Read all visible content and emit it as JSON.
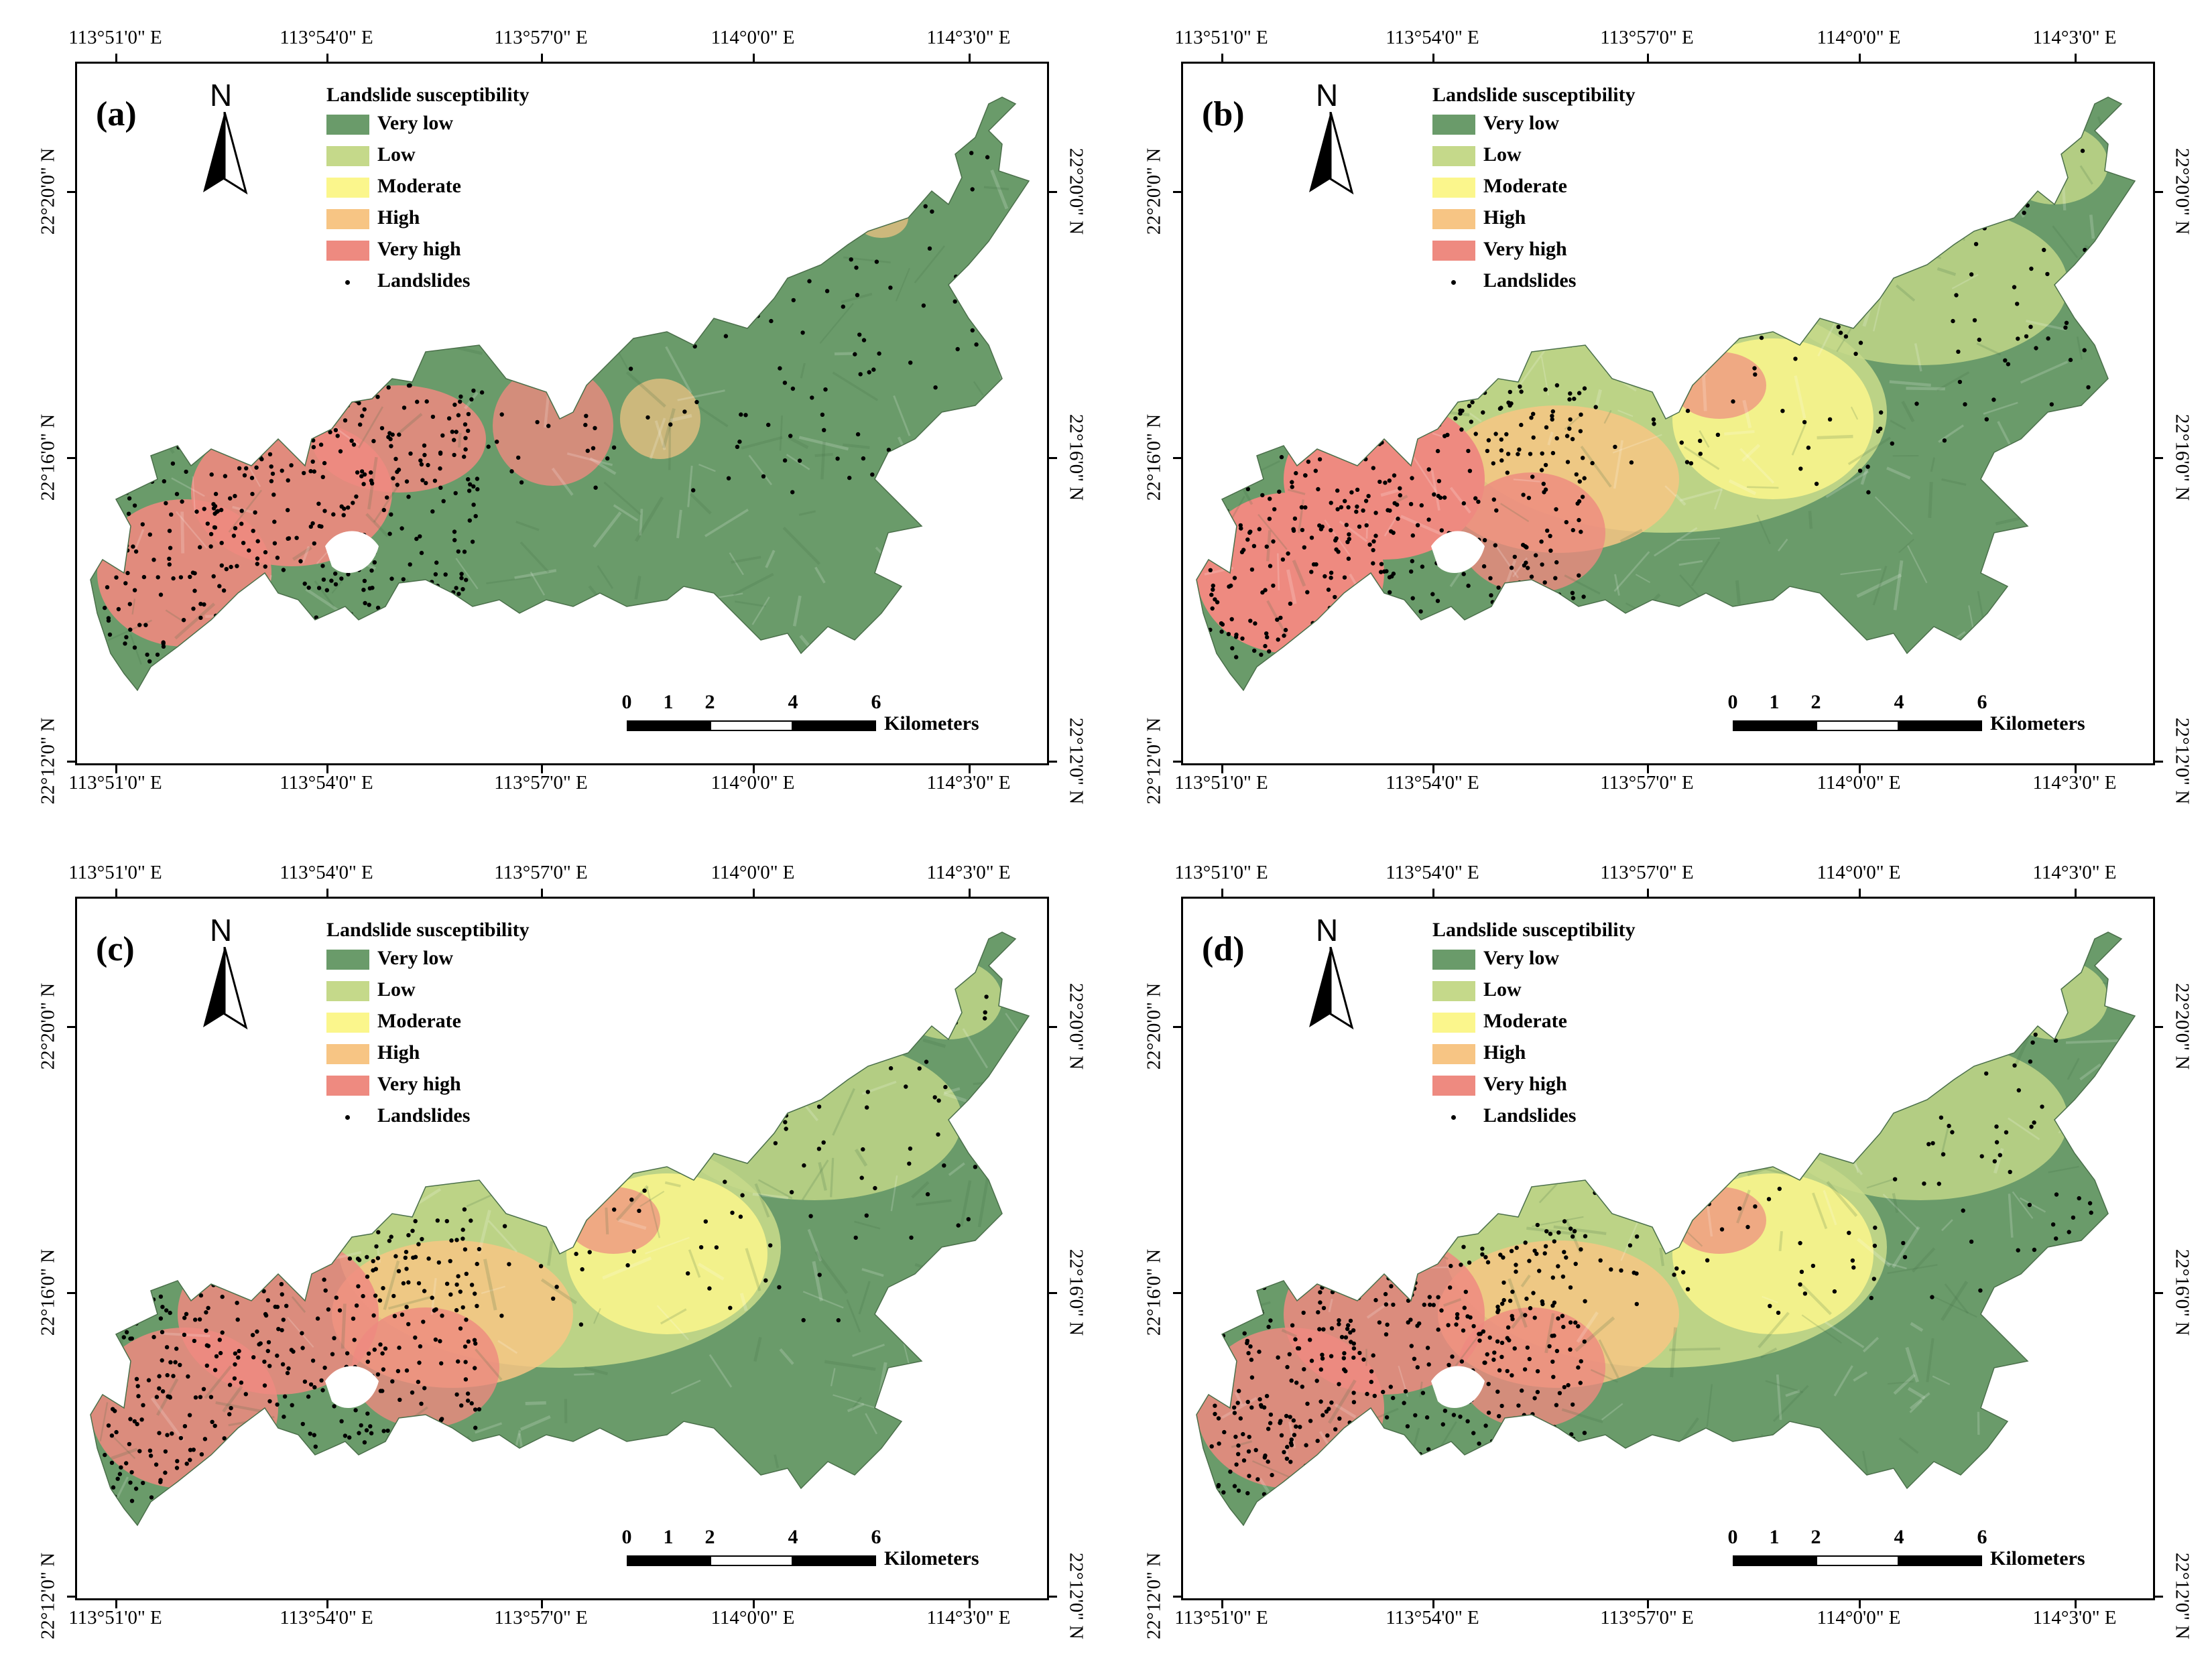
{
  "panels": [
    {
      "label": "(a)",
      "variant": "a"
    },
    {
      "label": "(b)",
      "variant": "b"
    },
    {
      "label": "(c)",
      "variant": "c"
    },
    {
      "label": "(d)",
      "variant": "d"
    }
  ],
  "axes": {
    "longitude_ticks": [
      "113°51'0\" E",
      "113°54'0\" E",
      "113°57'0\" E",
      "114°0'0\" E",
      "114°3'0\" E"
    ],
    "latitude_ticks": [
      "22°20'0\" N",
      "22°16'0\" N",
      "22°12'0\" N"
    ]
  },
  "north_arrow": {
    "letter": "N"
  },
  "legend": {
    "title": "Landslide susceptibility",
    "classes": [
      {
        "label": "Very low",
        "color": "#6a9b6a"
      },
      {
        "label": "Low",
        "color": "#c5d98a"
      },
      {
        "label": "Moderate",
        "color": "#fbf68c"
      },
      {
        "label": "High",
        "color": "#f7c584"
      },
      {
        "label": "Very high",
        "color": "#ee8a80"
      }
    ],
    "point_label": "Landslides"
  },
  "scale_bar": {
    "numbers": [
      "0",
      "1",
      "2",
      "4",
      "6"
    ],
    "unit": "Kilometers"
  }
}
